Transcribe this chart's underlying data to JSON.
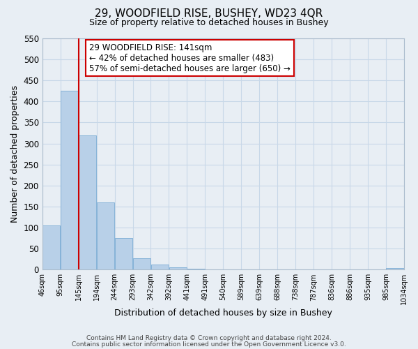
{
  "title": "29, WOODFIELD RISE, BUSHEY, WD23 4QR",
  "subtitle": "Size of property relative to detached houses in Bushey",
  "xlabel": "Distribution of detached houses by size in Bushey",
  "ylabel": "Number of detached properties",
  "bar_values": [
    105,
    425,
    320,
    160,
    75,
    27,
    13,
    5,
    3,
    0,
    0,
    0,
    0,
    0,
    0,
    0,
    0,
    0,
    0,
    4
  ],
  "bar_labels": [
    "46sqm",
    "95sqm",
    "145sqm",
    "194sqm",
    "244sqm",
    "293sqm",
    "342sqm",
    "392sqm",
    "441sqm",
    "491sqm",
    "540sqm",
    "589sqm",
    "639sqm",
    "688sqm",
    "738sqm",
    "787sqm",
    "836sqm",
    "886sqm",
    "935sqm",
    "985sqm",
    "1034sqm"
  ],
  "bar_color": "#b8d0e8",
  "bar_edge_color": "#7bacd4",
  "highlight_line_color": "#cc0000",
  "ylim": [
    0,
    550
  ],
  "yticks": [
    0,
    50,
    100,
    150,
    200,
    250,
    300,
    350,
    400,
    450,
    500,
    550
  ],
  "annotation_title": "29 WOODFIELD RISE: 141sqm",
  "annotation_line1": "← 42% of detached houses are smaller (483)",
  "annotation_line2": "57% of semi-detached houses are larger (650) →",
  "annotation_box_color": "#ffffff",
  "annotation_box_edge": "#cc0000",
  "footer_line1": "Contains HM Land Registry data © Crown copyright and database right 2024.",
  "footer_line2": "Contains public sector information licensed under the Open Government Licence v3.0.",
  "grid_color": "#c8d8e8",
  "background_color": "#e8eef4",
  "plot_bg_color": "#e8eef4"
}
